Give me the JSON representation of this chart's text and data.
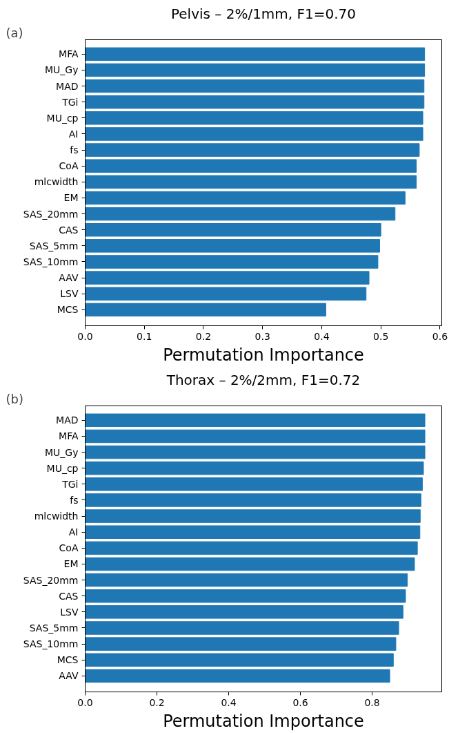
{
  "chart_data": [
    {
      "type": "bar",
      "orientation": "horizontal",
      "title": "Pelvis – 2%/1mm, F1=0.70",
      "xlabel": "Permutation Importance",
      "annotations": [
        "(a)"
      ],
      "color": "#1f77b4",
      "categories": [
        "MFA",
        "MU_Gy",
        "MAD",
        "TGi",
        "MU_cp",
        "AI",
        "fs",
        "CoA",
        "mlcwidth",
        "EM",
        "SAS_20mm",
        "CAS",
        "SAS_5mm",
        "SAS_10mm",
        "AAV",
        "LSV",
        "MCS"
      ],
      "values": [
        0.574,
        0.574,
        0.573,
        0.573,
        0.571,
        0.571,
        0.565,
        0.56,
        0.56,
        0.541,
        0.524,
        0.5,
        0.498,
        0.495,
        0.48,
        0.475,
        0.407
      ],
      "xlim": [
        0,
        0.603
      ],
      "xticks": [
        {
          "value": 0,
          "label": "0.0"
        },
        0.1,
        0.2,
        0.3,
        0.4,
        0.5,
        0.6
      ],
      "grid": false
    },
    {
      "type": "bar",
      "orientation": "horizontal",
      "title": "Thorax – 2%/2mm, F1=0.72",
      "xlabel": "Permutation Importance",
      "annotations": [
        "(b)"
      ],
      "color": "#1f77b4",
      "categories": [
        "MAD",
        "MFA",
        "MU_Gy",
        "MU_cp",
        "TGi",
        "fs",
        "mlcwidth",
        "AI",
        "CoA",
        "EM",
        "SAS_20mm",
        "CAS",
        "LSV",
        "SAS_5mm",
        "SAS_10mm",
        "MCS",
        "AAV"
      ],
      "values": [
        0.947,
        0.947,
        0.947,
        0.943,
        0.94,
        0.936,
        0.934,
        0.933,
        0.926,
        0.918,
        0.898,
        0.893,
        0.886,
        0.874,
        0.866,
        0.859,
        0.849
      ],
      "xlim": [
        0,
        0.994
      ],
      "xticks": [
        {
          "value": 0,
          "label": "0.0"
        },
        0.2,
        0.4,
        0.6,
        0.8
      ],
      "grid": false
    }
  ]
}
